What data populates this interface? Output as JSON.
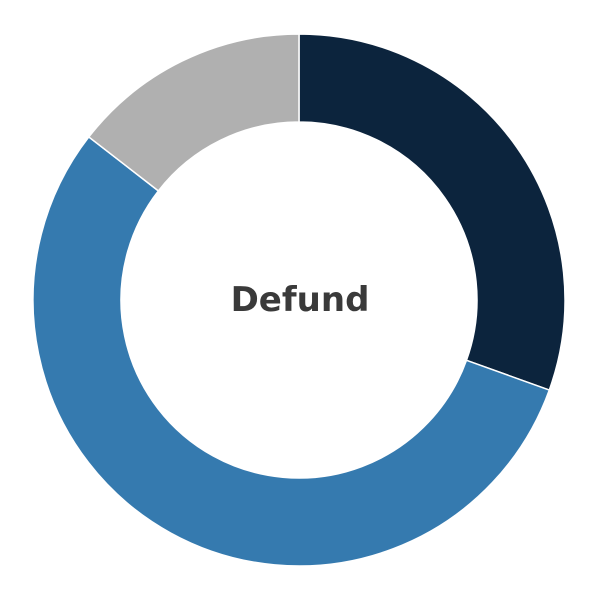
{
  "chart_data": {
    "type": "pie",
    "variant": "donut",
    "center_label": "Defund",
    "slices": [
      {
        "value": 30.5,
        "color": "#0c243d"
      },
      {
        "value": 55,
        "color": "#357aaf"
      },
      {
        "value": 14.5,
        "color": "#b0b0b0"
      }
    ],
    "legend": "none"
  }
}
